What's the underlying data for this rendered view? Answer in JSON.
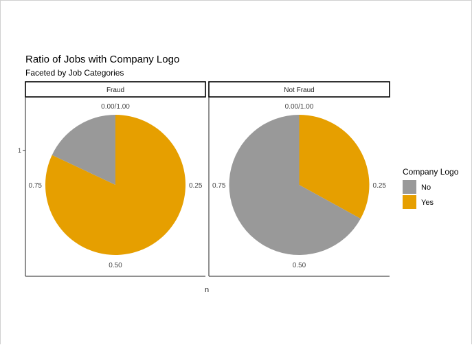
{
  "chart_data": {
    "type": "pie",
    "title": "Ratio of Jobs with Company Logo",
    "subtitle": "Faceted by Job Categories",
    "xlabel": "n",
    "ylabel": "",
    "y_tick_labels": [
      "1"
    ],
    "angle_tick_labels": [
      "0.00/1.00",
      "0.25",
      "0.50",
      "0.75"
    ],
    "legend": {
      "title": "Company Logo",
      "position": "right",
      "entries": [
        {
          "label": "No",
          "color": "#999999"
        },
        {
          "label": "Yes",
          "color": "#E69F00"
        }
      ]
    },
    "facets": [
      {
        "label": "Fraud",
        "slices": [
          {
            "category": "No",
            "value": 0.18
          },
          {
            "category": "Yes",
            "value": 0.82
          }
        ]
      },
      {
        "label": "Not Fraud",
        "slices": [
          {
            "category": "No",
            "value": 0.67
          },
          {
            "category": "Yes",
            "value": 0.33
          }
        ]
      }
    ],
    "grid": false
  }
}
